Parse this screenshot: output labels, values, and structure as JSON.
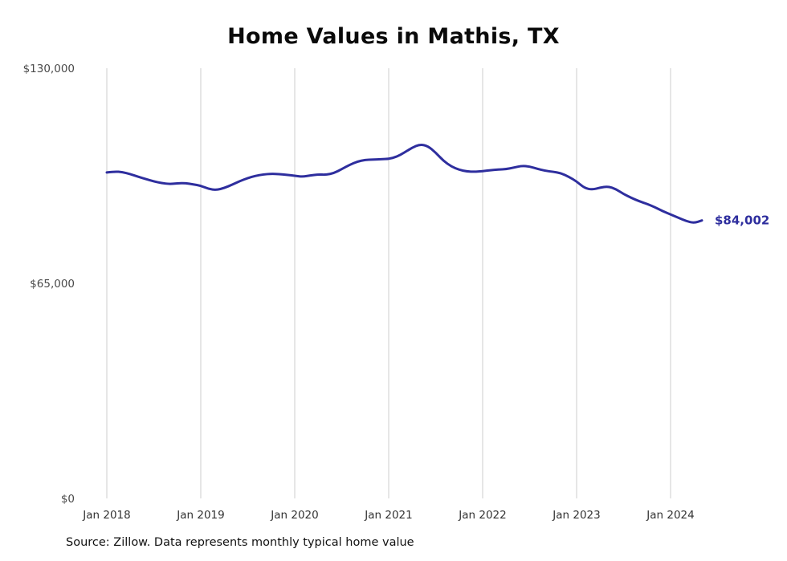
{
  "title": "Home Values in Mathis, TX",
  "source_note": "Source: Zillow. Data represents monthly typical home value",
  "colors": {
    "line": "#2e2e9e",
    "gridline": "#cccccc",
    "y_tick_text": "#4a4a4a",
    "x_tick_text": "#333333",
    "title_text": "#0a0a0a"
  },
  "chart_data": {
    "type": "line",
    "title": "Home Values in Mathis, TX",
    "series_name": "Monthly typical home value",
    "xlabel": "",
    "ylabel": "",
    "ylim": [
      0,
      130000
    ],
    "y_ticks": [
      0,
      65000,
      130000
    ],
    "y_tick_labels": [
      "$0",
      "$65,000",
      "$130,000"
    ],
    "x_tick_labels": [
      "Jan 2018",
      "Jan 2019",
      "Jan 2020",
      "Jan 2021",
      "Jan 2022",
      "Jan 2023",
      "Jan 2024"
    ],
    "x_tick_month_indexes": [
      0,
      12,
      24,
      36,
      48,
      60,
      72
    ],
    "grid": "vertical-only",
    "legend": "none",
    "end_value_label": "$84,002",
    "x": [
      "2018-01",
      "2018-02",
      "2018-03",
      "2018-04",
      "2018-05",
      "2018-06",
      "2018-07",
      "2018-08",
      "2018-09",
      "2018-10",
      "2018-11",
      "2018-12",
      "2019-01",
      "2019-02",
      "2019-03",
      "2019-04",
      "2019-05",
      "2019-06",
      "2019-07",
      "2019-08",
      "2019-09",
      "2019-10",
      "2019-11",
      "2019-12",
      "2020-01",
      "2020-02",
      "2020-03",
      "2020-04",
      "2020-05",
      "2020-06",
      "2020-07",
      "2020-08",
      "2020-09",
      "2020-10",
      "2020-11",
      "2020-12",
      "2021-01",
      "2021-02",
      "2021-03",
      "2021-04",
      "2021-05",
      "2021-06",
      "2021-07",
      "2021-08",
      "2021-09",
      "2021-10",
      "2021-11",
      "2021-12",
      "2022-01",
      "2022-02",
      "2022-03",
      "2022-04",
      "2022-05",
      "2022-06",
      "2022-07",
      "2022-08",
      "2022-09",
      "2022-10",
      "2022-11",
      "2022-12",
      "2023-01",
      "2023-02",
      "2023-03",
      "2023-04",
      "2023-05",
      "2023-06",
      "2023-07",
      "2023-08",
      "2023-09",
      "2023-10",
      "2023-11",
      "2023-12",
      "2024-01",
      "2024-02",
      "2024-03",
      "2024-04",
      "2024-05"
    ],
    "values": [
      98500,
      98800,
      98600,
      98000,
      97200,
      96500,
      95800,
      95300,
      95000,
      95200,
      95300,
      94900,
      94500,
      93500,
      93200,
      93800,
      94800,
      95900,
      96800,
      97500,
      97900,
      98100,
      98000,
      97800,
      97500,
      97200,
      97600,
      97900,
      97800,
      98300,
      99500,
      100800,
      101800,
      102300,
      102400,
      102500,
      102600,
      103200,
      104500,
      106000,
      107000,
      106500,
      104500,
      102000,
      100300,
      99300,
      98800,
      98700,
      98900,
      99200,
      99400,
      99500,
      100000,
      100500,
      100300,
      99600,
      99000,
      98700,
      98300,
      97200,
      95800,
      93800,
      93300,
      93900,
      94300,
      93500,
      92000,
      90800,
      89800,
      89000,
      88000,
      86800,
      85800,
      84800,
      83800,
      83200,
      84002
    ]
  }
}
